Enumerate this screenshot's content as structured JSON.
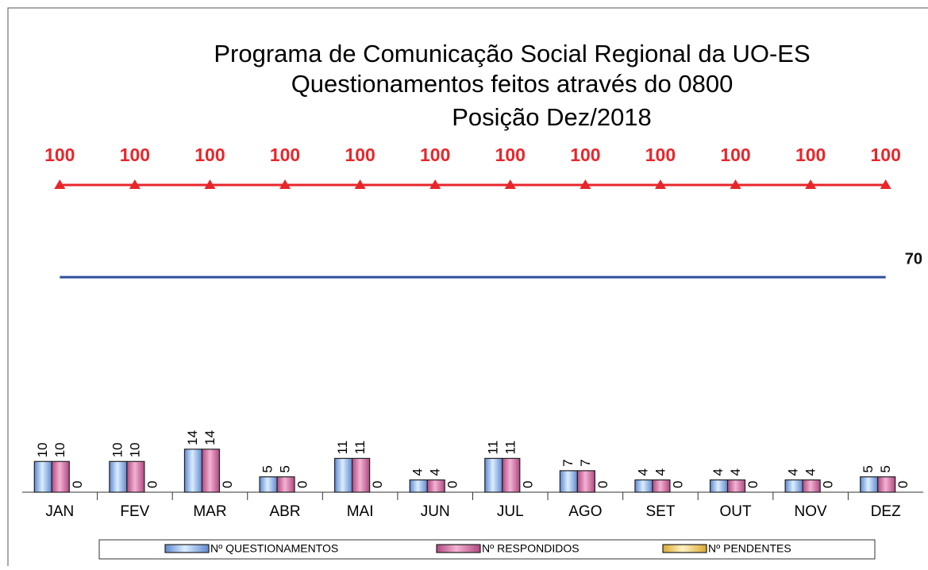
{
  "chart_data": {
    "type": "bar",
    "title": "Programa de Comunicação Social Regional da UO-ES",
    "subtitle": "Questionamentos feitos através do 0800",
    "subtitle2": "Posição Dez/2018",
    "categories": [
      "JAN",
      "FEV",
      "MAR",
      "ABR",
      "MAI",
      "JUN",
      "JUL",
      "AGO",
      "SET",
      "OUT",
      "NOV",
      "DEZ"
    ],
    "ylim": [
      0,
      100
    ],
    "series": [
      {
        "name": "Nº QUESTIONAMENTOS",
        "type": "bar",
        "color": "#a9cdf0",
        "values": [
          10,
          10,
          14,
          5,
          11,
          4,
          11,
          7,
          4,
          4,
          4,
          5
        ]
      },
      {
        "name": "Nº RESPONDIDOS",
        "type": "bar",
        "color": "#e47fb2",
        "values": [
          10,
          10,
          14,
          5,
          11,
          4,
          11,
          7,
          4,
          4,
          4,
          5
        ]
      },
      {
        "name": "Nº PENDENTES",
        "type": "bar",
        "color": "#ffe08a",
        "values": [
          0,
          0,
          0,
          0,
          0,
          0,
          0,
          0,
          0,
          0,
          0,
          0
        ]
      },
      {
        "type": "line",
        "color": "#e8262a",
        "marker": "triangle",
        "labels": "all",
        "values": [
          100,
          100,
          100,
          100,
          100,
          100,
          100,
          100,
          100,
          100,
          100,
          100
        ]
      },
      {
        "type": "line",
        "color": "#2f4f9c",
        "labels": "last",
        "values": [
          70,
          70,
          70,
          70,
          70,
          70,
          70,
          70,
          70,
          70,
          70,
          70
        ]
      }
    ]
  }
}
